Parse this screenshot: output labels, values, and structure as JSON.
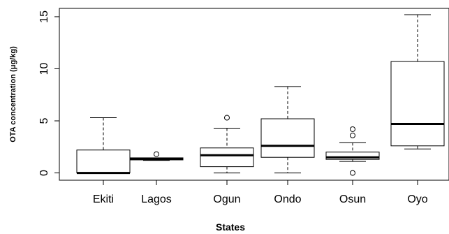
{
  "chart_data": {
    "type": "box",
    "title": "",
    "xlabel": "States",
    "ylabel": "OTA concentration (μg/kg)",
    "ylim": [
      -0.7,
      15.8
    ],
    "yticks": [
      0,
      5,
      10,
      15
    ],
    "ytick_labels": [
      "0",
      "5",
      "10",
      "15"
    ],
    "grid": false,
    "categories": [
      "Ekiti",
      "Lagos",
      "Ogun",
      "Ondo",
      "Osun",
      "Oyo"
    ],
    "boxes": [
      {
        "label": "Ekiti",
        "whisker_low": 0.0,
        "q1": 0.0,
        "median": 0.0,
        "q3": 2.2,
        "whisker_high": 5.3,
        "outliers": []
      },
      {
        "label": "Lagos",
        "whisker_low": 1.2,
        "q1": 1.25,
        "median": 1.35,
        "q3": 1.45,
        "whisker_high": 1.45,
        "outliers": [
          1.8
        ]
      },
      {
        "label": "Ogun",
        "whisker_low": 0.0,
        "q1": 0.6,
        "median": 1.7,
        "q3": 2.4,
        "whisker_high": 4.3,
        "outliers": [
          5.3
        ]
      },
      {
        "label": "Ondo",
        "whisker_low": 0.0,
        "q1": 1.5,
        "median": 2.6,
        "q3": 5.2,
        "whisker_high": 8.3,
        "outliers": []
      },
      {
        "label": "Osun",
        "whisker_low": 1.1,
        "q1": 1.3,
        "median": 1.5,
        "q3": 2.0,
        "whisker_high": 2.9,
        "outliers": [
          4.2,
          3.6,
          0.0
        ]
      },
      {
        "label": "Oyo",
        "whisker_low": 2.3,
        "q1": 2.6,
        "median": 4.7,
        "q3": 10.7,
        "whisker_high": 15.2,
        "outliers": []
      }
    ]
  }
}
